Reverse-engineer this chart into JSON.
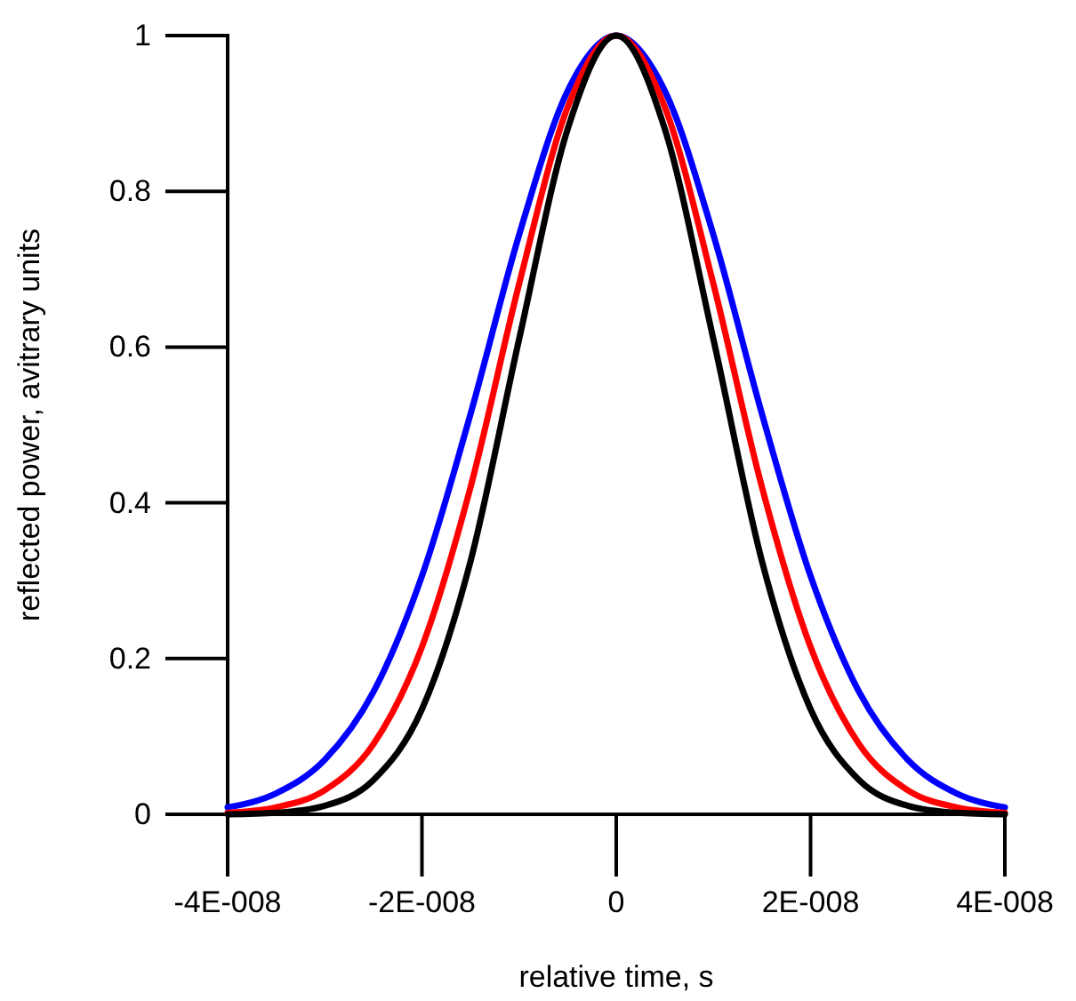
{
  "chart_data": {
    "type": "line",
    "xlabel": "relative time, s",
    "ylabel": "reflected power, avitrary units",
    "x": [
      -4e-08,
      -3.5e-08,
      -3e-08,
      -2.5e-08,
      -2e-08,
      -1.5e-08,
      -1e-08,
      -5e-09,
      0,
      5e-09,
      1e-08,
      1.5e-08,
      2e-08,
      2.5e-08,
      3e-08,
      3.5e-08,
      4e-08
    ],
    "series": [
      {
        "color": "#0000ff",
        "values": [
          0.009,
          0.027,
          0.07,
          0.157,
          0.306,
          0.514,
          0.744,
          0.929,
          1,
          0.929,
          0.744,
          0.514,
          0.306,
          0.157,
          0.07,
          0.027,
          0.009
        ]
      },
      {
        "color": "#ff0000",
        "values": [
          0.002,
          0.009,
          0.031,
          0.09,
          0.215,
          0.42,
          0.681,
          0.908,
          1,
          0.908,
          0.681,
          0.42,
          0.215,
          0.09,
          0.031,
          0.009,
          0.002
        ]
      },
      {
        "color": "#000000",
        "values": [
          0,
          0.002,
          0.011,
          0.044,
          0.135,
          0.325,
          0.61,
          0.88,
          1,
          0.88,
          0.61,
          0.325,
          0.135,
          0.044,
          0.011,
          0.002,
          0
        ]
      }
    ],
    "xlim": [
      -4e-08,
      4e-08
    ],
    "xticks": [
      {
        "value": -4e-08,
        "label": "-4E-008"
      },
      {
        "value": -2e-08,
        "label": "-2E-008"
      },
      {
        "value": 0,
        "label": "0"
      },
      {
        "value": 2e-08,
        "label": "2E-008"
      },
      {
        "value": 4e-08,
        "label": "4E-008"
      }
    ],
    "ylim": [
      0,
      1
    ],
    "yticks": [
      0,
      0.2,
      0.4,
      0.6,
      0.8,
      1
    ],
    "grid": false,
    "marker": "none",
    "line_style": "solid"
  }
}
